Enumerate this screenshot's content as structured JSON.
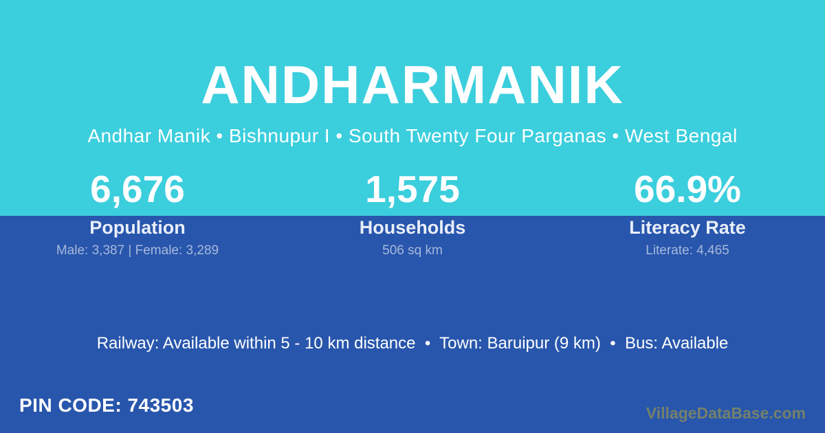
{
  "header": {
    "title": "ANDHARMANIK",
    "breadcrumb": "Andhar Manik • Bishnupur I • South Twenty Four Parganas • West Bengal"
  },
  "stats": [
    {
      "value": "6,676",
      "label": "Population",
      "detail": "Male: 3,387 | Female: 3,289"
    },
    {
      "value": "1,575",
      "label": "Households",
      "detail": "506 sq km"
    },
    {
      "value": "66.9%",
      "label": "Literacy Rate",
      "detail": "Literate: 4,465"
    }
  ],
  "info_line": "Railway: Available within 5 - 10 km distance  •  Town: Baruipur (9 km)  •  Bus: Available",
  "footer": {
    "pin_code": "PIN CODE: 743503",
    "watermark": "VillageDataBase.com"
  },
  "colors": {
    "top_bg": "#3BCEDD",
    "bottom_bg": "#2856AC",
    "text_primary": "#FFFFFF",
    "stat_label": "#E9EEF8",
    "stat_detail": "#A7B9DC",
    "watermark": "#76816B"
  }
}
